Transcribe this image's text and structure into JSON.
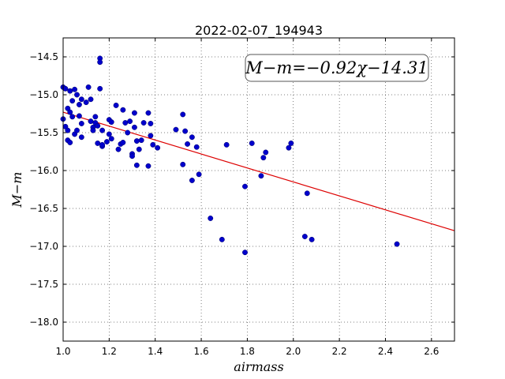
{
  "chart_data": {
    "type": "scatter",
    "title": "2022-02-07_194943",
    "xlabel": "airmass",
    "ylabel": "M−m",
    "xlim": [
      1.0,
      2.7
    ],
    "ylim": [
      -18.25,
      -14.25
    ],
    "y_inverted": true,
    "grid": true,
    "xticks": [
      1.0,
      1.2,
      1.4,
      1.6,
      1.8,
      2.0,
      2.2,
      2.4,
      2.6
    ],
    "xtick_labels": [
      "1.0",
      "1.2",
      "1.4",
      "1.6",
      "1.8",
      "2.0",
      "2.2",
      "2.4",
      "2.6"
    ],
    "yticks": [
      -14.5,
      -15.0,
      -15.5,
      -16.0,
      -16.5,
      -17.0,
      -17.5,
      -18.0
    ],
    "ytick_labels": [
      "−14.5",
      "−15.0",
      "−15.5",
      "−16.0",
      "−16.5",
      "−17.0",
      "−17.5",
      "−18.0"
    ],
    "point_color": "#0000cc",
    "fit_color": "#dd0000",
    "fit": {
      "slope": -0.92,
      "intercept": -14.31,
      "label": "M−m=−0.92χ−14.31"
    },
    "x": [
      1.0,
      1.0,
      1.01,
      1.01,
      1.02,
      1.02,
      1.02,
      1.03,
      1.03,
      1.03,
      1.04,
      1.04,
      1.05,
      1.05,
      1.06,
      1.06,
      1.07,
      1.07,
      1.08,
      1.08,
      1.08,
      1.1,
      1.11,
      1.12,
      1.12,
      1.13,
      1.13,
      1.14,
      1.14,
      1.15,
      1.15,
      1.16,
      1.16,
      1.16,
      1.17,
      1.17,
      1.17,
      1.19,
      1.2,
      1.2,
      1.21,
      1.21,
      1.23,
      1.24,
      1.25,
      1.26,
      1.26,
      1.27,
      1.28,
      1.29,
      1.3,
      1.3,
      1.31,
      1.31,
      1.32,
      1.32,
      1.33,
      1.34,
      1.35,
      1.37,
      1.37,
      1.38,
      1.38,
      1.39,
      1.41,
      1.49,
      1.52,
      1.52,
      1.53,
      1.54,
      1.56,
      1.56,
      1.58,
      1.59,
      1.64,
      1.69,
      1.71,
      1.79,
      1.79,
      1.82,
      1.86,
      1.87,
      1.88,
      1.98,
      1.99,
      2.05,
      2.06,
      2.08,
      2.45
    ],
    "y": [
      -14.9,
      -15.32,
      -14.92,
      -15.42,
      -15.18,
      -15.47,
      -15.6,
      -14.95,
      -15.23,
      -15.63,
      -15.08,
      -15.29,
      -14.93,
      -15.52,
      -15.0,
      -15.47,
      -15.13,
      -15.28,
      -15.06,
      -15.38,
      -15.56,
      -15.1,
      -14.9,
      -15.06,
      -15.35,
      -15.43,
      -15.47,
      -15.29,
      -15.37,
      -15.41,
      -15.64,
      -14.52,
      -14.57,
      -14.92,
      -15.47,
      -15.68,
      -15.66,
      -15.62,
      -15.33,
      -15.52,
      -15.36,
      -15.58,
      -15.14,
      -15.72,
      -15.65,
      -15.2,
      -15.63,
      -15.37,
      -15.5,
      -15.35,
      -15.78,
      -15.81,
      -15.24,
      -15.43,
      -15.61,
      -15.93,
      -15.72,
      -15.6,
      -15.37,
      -15.24,
      -15.94,
      -15.38,
      -15.54,
      -15.66,
      -15.7,
      -15.46,
      -15.26,
      -15.92,
      -15.48,
      -15.65,
      -15.56,
      -16.13,
      -15.69,
      -16.05,
      -16.63,
      -16.91,
      -15.66,
      -16.21,
      -17.08,
      -15.64,
      -16.07,
      -15.83,
      -15.76,
      -15.7,
      -15.64,
      -16.87,
      -16.3,
      -16.91,
      -16.97
    ]
  }
}
